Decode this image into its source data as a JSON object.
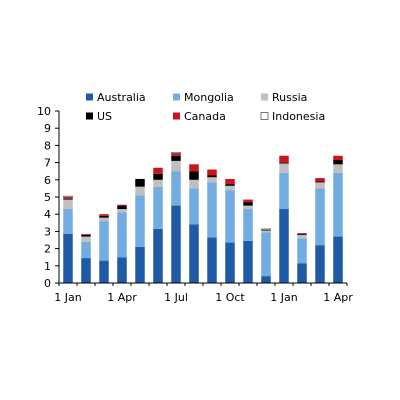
{
  "chart_data": {
    "type": "bar",
    "stacked": true,
    "categories": [
      "Jan",
      "Feb",
      "Mar",
      "Apr",
      "May",
      "Jun",
      "Jul",
      "Aug",
      "Sep",
      "Oct",
      "Nov",
      "Dec",
      "Jan",
      "Feb",
      "Mar",
      "Apr"
    ],
    "x_tick_labels": [
      {
        "category_index": 0,
        "label": "1 Jan"
      },
      {
        "category_index": 3,
        "label": "1 Apr"
      },
      {
        "category_index": 6,
        "label": "1 Jul"
      },
      {
        "category_index": 9,
        "label": "1 Oct"
      },
      {
        "category_index": 12,
        "label": "1 Jan"
      },
      {
        "category_index": 15,
        "label": "1 Apr"
      }
    ],
    "ylim": [
      0,
      10
    ],
    "y_ticks": [
      0,
      1,
      2,
      3,
      4,
      5,
      6,
      7,
      8,
      9,
      10
    ],
    "grid": false,
    "legend": "top",
    "title": "",
    "xlabel": "",
    "ylabel": "",
    "series": [
      {
        "name": "Australia",
        "color": "#1f5aa6",
        "values": [
          2.85,
          1.45,
          1.3,
          1.5,
          2.1,
          3.15,
          4.5,
          3.4,
          2.65,
          2.35,
          2.45,
          0.4,
          4.3,
          1.15,
          2.2,
          2.7
        ]
      },
      {
        "name": "Mongolia",
        "color": "#73ace0",
        "values": [
          1.45,
          0.95,
          2.3,
          2.6,
          3.0,
          2.45,
          2.0,
          2.1,
          3.2,
          3.05,
          1.85,
          2.55,
          2.1,
          1.45,
          3.3,
          3.7
        ]
      },
      {
        "name": "Russia",
        "color": "#bfbfbf",
        "values": [
          0.55,
          0.3,
          0.2,
          0.2,
          0.5,
          0.4,
          0.6,
          0.5,
          0.3,
          0.25,
          0.2,
          0.1,
          0.55,
          0.2,
          0.35,
          0.5
        ]
      },
      {
        "name": "US",
        "color": "#000000",
        "values": [
          0.05,
          0.1,
          0.1,
          0.2,
          0.45,
          0.35,
          0.3,
          0.5,
          0.1,
          0.1,
          0.2,
          0.05,
          0.05,
          0.05,
          0.05,
          0.25
        ]
      },
      {
        "name": "Canada",
        "color": "#c8161d",
        "values": [
          0.1,
          0.05,
          0.1,
          0.05,
          0.0,
          0.35,
          0.15,
          0.4,
          0.35,
          0.3,
          0.15,
          0.0,
          0.4,
          0.05,
          0.2,
          0.25
        ]
      },
      {
        "name": "Indonesia",
        "color": "#ffffff",
        "values": [
          0.05,
          0.0,
          0.0,
          0.0,
          0.0,
          0.0,
          0.05,
          0.0,
          0.0,
          0.0,
          0.0,
          0.05,
          0.0,
          0.0,
          0.0,
          0.0
        ]
      }
    ]
  }
}
